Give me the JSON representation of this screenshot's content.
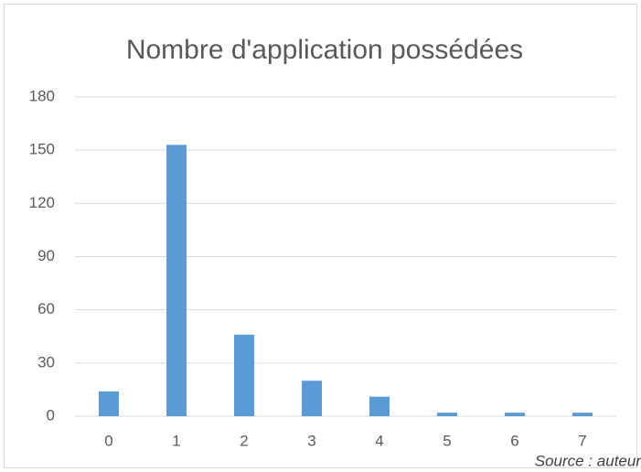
{
  "chart_data": {
    "type": "bar",
    "title": "Nombre d'application possédées",
    "categories": [
      "0",
      "1",
      "2",
      "3",
      "4",
      "5",
      "6",
      "7"
    ],
    "values": [
      14,
      153,
      46,
      20,
      11,
      2,
      2,
      2
    ],
    "color": "#5b9bd5",
    "ylim": [
      0,
      180
    ],
    "yticks": [
      0,
      30,
      60,
      90,
      120,
      150,
      180
    ],
    "grid": true,
    "annotation": "Source : auteur"
  }
}
